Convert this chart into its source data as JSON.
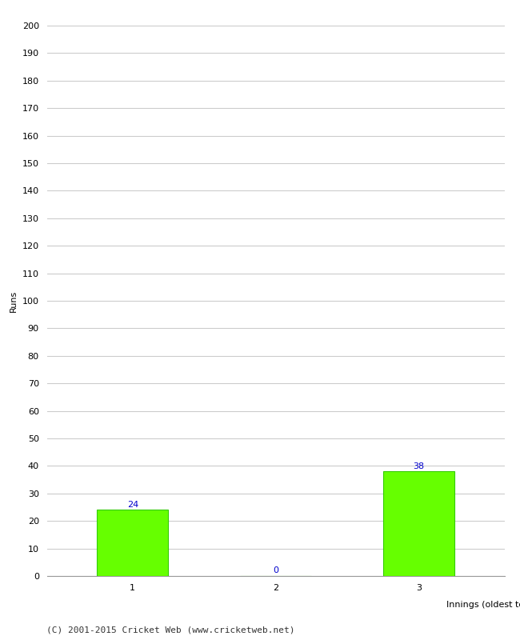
{
  "categories": [
    "1",
    "2",
    "3"
  ],
  "values": [
    24,
    0,
    38
  ],
  "bar_color": "#66ff00",
  "bar_edge_color": "#33cc00",
  "xlabel": "Innings (oldest to newest)",
  "ylabel": "Runs",
  "ylim": [
    0,
    200
  ],
  "yticks": [
    0,
    10,
    20,
    30,
    40,
    50,
    60,
    70,
    80,
    90,
    100,
    110,
    120,
    130,
    140,
    150,
    160,
    170,
    180,
    190,
    200
  ],
  "annotation_color": "#0000cc",
  "annotation_fontsize": 8,
  "axis_label_fontsize": 8,
  "tick_fontsize": 8,
  "footer_text": "(C) 2001-2015 Cricket Web (www.cricketweb.net)",
  "footer_fontsize": 8,
  "background_color": "#ffffff",
  "grid_color": "#cccccc",
  "bar_width": 0.5
}
